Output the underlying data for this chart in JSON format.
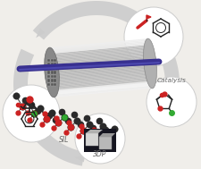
{
  "bg": "#f0eeea",
  "arrow_color": "#cccccc",
  "circle_fill": "#ffffff",
  "circle_edge": "#cccccc",
  "dark_atom": "#2a2a2a",
  "red_atom": "#cc2222",
  "green_atom": "#33aa33",
  "bond_color": "#444444",
  "tube_light": "#d8d8d8",
  "tube_mid": "#b0b0b0",
  "tube_dark": "#888888",
  "grid_dark": "#666666",
  "grid_light": "#999999",
  "rod_color": "#383090",
  "rod_highlight": "#6060cc",
  "sil_label": "SIL",
  "three_dp_label": "3DP",
  "catalysis_label": "Catalysis",
  "label_color": "#666666"
}
